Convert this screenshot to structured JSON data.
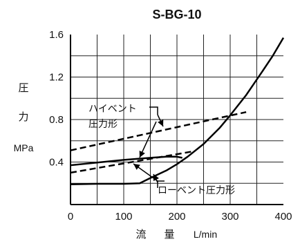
{
  "chart_data": {
    "type": "line",
    "title": "S-BG-10",
    "xlabel": "流 量 L/min",
    "xlabel_parts": [
      "流",
      "量",
      "L/min"
    ],
    "ylabel_parts": [
      "圧",
      "力"
    ],
    "yunit": "MPa",
    "xlim": [
      0,
      400
    ],
    "ylim": [
      0,
      1.6
    ],
    "x_ticks": [
      0,
      100,
      200,
      300,
      400
    ],
    "x_tick_labels": [
      "0",
      "100",
      "200",
      "300",
      "400"
    ],
    "y_ticks": [
      0.4,
      0.8,
      1.2,
      1.6
    ],
    "y_tick_labels": [
      "0.4",
      "0.8",
      "1.2",
      "1.6"
    ],
    "grid": true,
    "annotations": [
      {
        "text": "ハイベント",
        "target": "ハイベント"
      },
      {
        "text": "圧力形",
        "target": "ハイベント"
      },
      {
        "text": "ローベント圧力形",
        "target": "ローベント"
      }
    ],
    "series": [
      {
        "group": "ハイベント",
        "style": "solid",
        "x": [
          0,
          50,
          100,
          150,
          180,
          200,
          210
        ],
        "y": [
          0.37,
          0.395,
          0.42,
          0.44,
          0.45,
          0.45,
          0.44
        ]
      },
      {
        "group": "ハイベント",
        "style": "dashed",
        "x": [
          0,
          330
        ],
        "y": [
          0.51,
          0.87
        ]
      },
      {
        "group": "ローベント",
        "style": "solid",
        "x": [
          0,
          50,
          100,
          130,
          150,
          180,
          200,
          220,
          250,
          280,
          300,
          330,
          360,
          380,
          400
        ],
        "y": [
          0.19,
          0.195,
          0.195,
          0.2,
          0.25,
          0.32,
          0.38,
          0.45,
          0.57,
          0.72,
          0.84,
          1.03,
          1.25,
          1.4,
          1.57
        ]
      },
      {
        "group": "ローベント",
        "style": "dashed",
        "x": [
          0,
          230
        ],
        "y": [
          0.3,
          0.5
        ]
      }
    ]
  }
}
